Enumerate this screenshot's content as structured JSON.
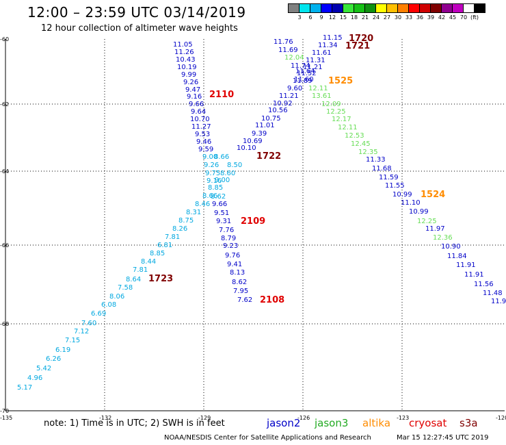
{
  "header": {
    "title": "12:00 – 23:59 UTC 03/14/2019",
    "subtitle": "12 hour collection of altimeter wave heights"
  },
  "scale": {
    "colors": [
      "#808080",
      "#00e5ee",
      "#00b2ee",
      "#0000ff",
      "#0000b0",
      "#39e639",
      "#16c116",
      "#109010",
      "#ffff00",
      "#ffc000",
      "#ff8000",
      "#ff0000",
      "#d00000",
      "#800000",
      "#900090",
      "#c000c0",
      "#ffffff",
      "#000000"
    ],
    "labels": [
      "3",
      "6",
      "9",
      "12",
      "15",
      "18",
      "21",
      "24",
      "27",
      "30",
      "33",
      "36",
      "39",
      "42",
      "45",
      "70",
      "(ft)"
    ]
  },
  "axes": {
    "lat_labels": [
      "-60",
      "-62",
      "-64",
      "-66",
      "-68",
      "-70"
    ],
    "lon_labels": [
      "-135",
      "-132",
      "-129",
      "-126",
      "-123",
      "-120"
    ]
  },
  "colors": {
    "jason2": "#0000c8",
    "jason3": "#22aa22",
    "altika": "#ff8c00",
    "cryosat": "#e00000",
    "s3a": "#800000",
    "cyan": "#00a8e0",
    "green": "#66dd55",
    "blue": "#0000c8"
  },
  "tracks": [
    {
      "id": "jason2-north",
      "color": "blue",
      "values": [
        "11.05",
        "11.26",
        "10.43",
        "10.19",
        "9.99",
        "9.26",
        "9.47",
        "9.16",
        "9.66",
        "9.64",
        "10.70",
        "11.27",
        "9.53",
        "9.46",
        "9.59"
      ]
    },
    {
      "id": "cyan-cross",
      "color": "cyan",
      "values": [
        "9.00",
        "9.26",
        "9.75",
        "9.16",
        "8.85",
        "8.66",
        "8.46",
        "8.31",
        "8.75",
        "8.26",
        "7.81",
        "6.81",
        "8.85",
        "8.44",
        "7.81",
        "8.64",
        "7.58",
        "8.06",
        "6.08",
        "6.69",
        "7.60",
        "7.12",
        "7.15",
        "6.19",
        "6.26",
        "5.42",
        "4.96",
        "5.17"
      ]
    },
    {
      "id": "cyan-mid",
      "color": "cyan",
      "values": [
        "8.66",
        "8.50",
        "8.60",
        "9.00",
        "8.62"
      ]
    },
    {
      "id": "jason2-south",
      "color": "blue",
      "values": [
        "9.66",
        "9.51",
        "9.31",
        "7.76",
        "8.79",
        "9.23",
        "9.76",
        "9.41",
        "8.13",
        "8.62",
        "7.95",
        "7.62"
      ]
    },
    {
      "id": "jason2-ne-a",
      "color": "blue",
      "values": [
        "11.76",
        "11.69",
        "11.74",
        "11.64",
        "11.60",
        "9.60",
        "11.21",
        "10.92",
        "10.56",
        "10.75",
        "11.01",
        "9.39",
        "10.69",
        "10.10"
      ]
    },
    {
      "id": "jason2-ne-b",
      "color": "blue",
      "values": [
        "11.15",
        "11.34",
        "11.61",
        "11.31",
        "11.21",
        "11.52",
        "11.89"
      ]
    },
    {
      "id": "jason3",
      "color": "green",
      "values": [
        "12.04",
        "12.11",
        "13.61",
        "12.09",
        "12.25",
        "12.17",
        "12.11",
        "12.53",
        "12.45",
        "12.35"
      ]
    },
    {
      "id": "jason2-se",
      "color": "blue",
      "values": [
        "11.33",
        "11.68",
        "11.59",
        "11.55",
        "10.99",
        "11.10",
        "10.99"
      ]
    },
    {
      "id": "jason3-se",
      "color": "green",
      "values": [
        "12.25",
        "12.36"
      ]
    },
    {
      "id": "jason2-se2",
      "color": "blue",
      "values": [
        "11.97",
        "10.90",
        "11.84",
        "11.91",
        "11.91",
        "11.56",
        "11.48",
        "11.9"
      ]
    }
  ],
  "times": [
    {
      "text": "1720",
      "color": "s3a"
    },
    {
      "text": "1721",
      "color": "s3a"
    },
    {
      "text": "1525",
      "color": "altika"
    },
    {
      "text": "2110",
      "color": "cryosat"
    },
    {
      "text": "1722",
      "color": "s3a"
    },
    {
      "text": "1524",
      "color": "altika"
    },
    {
      "text": "2109",
      "color": "cryosat"
    },
    {
      "text": "1723",
      "color": "s3a"
    },
    {
      "text": "2108",
      "color": "cryosat"
    }
  ],
  "footer": {
    "note": "note: 1) Time is in UTC; 2) SWH is in feet",
    "satellites": [
      {
        "name": "jason2",
        "color": "#0000c8"
      },
      {
        "name": "jason3",
        "color": "#22aa22"
      },
      {
        "name": "altika",
        "color": "#ff8c00"
      },
      {
        "name": "cryosat",
        "color": "#e00000"
      },
      {
        "name": "s3a",
        "color": "#800000"
      }
    ],
    "credit": "NOAA/NESDIS Center for Satellite Applications and Research",
    "timestamp": "Mar 15 12:27:45 UTC 2019"
  }
}
